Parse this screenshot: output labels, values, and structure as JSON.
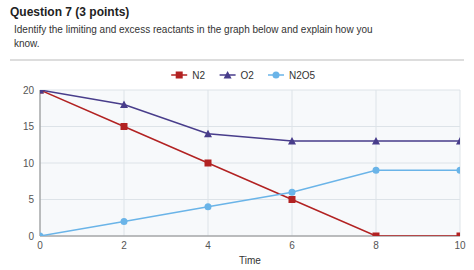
{
  "chart_data": {
    "type": "line",
    "title": "Question 7 (3 points)",
    "subtitle": [
      "Identify the limiting and excess reactants in the graph below and explain how you",
      "know."
    ],
    "x_label": "Time",
    "x": [
      0,
      2,
      4,
      6,
      8,
      10
    ],
    "series": [
      {
        "name": "N2",
        "color": "#b22222",
        "marker": "square",
        "line_style": "solid",
        "values": [
          20,
          15,
          10,
          5,
          0,
          0
        ]
      },
      {
        "name": "O2",
        "color": "#483d8b",
        "marker": "triangle",
        "line_style": "solid",
        "values": [
          20,
          18,
          14,
          13,
          13,
          13
        ]
      },
      {
        "name": "N2O5",
        "color": "#6ab4e8",
        "marker": "circle",
        "line_style": "solid",
        "values": [
          0,
          2,
          4,
          6,
          9,
          9
        ]
      }
    ],
    "xlim": [
      0,
      10
    ],
    "xticks": [
      0,
      2,
      4,
      6,
      8,
      10
    ],
    "ylim": [
      0,
      20
    ],
    "yticks": [
      0,
      5,
      10,
      15,
      20
    ],
    "grid": true,
    "legend": "top"
  }
}
